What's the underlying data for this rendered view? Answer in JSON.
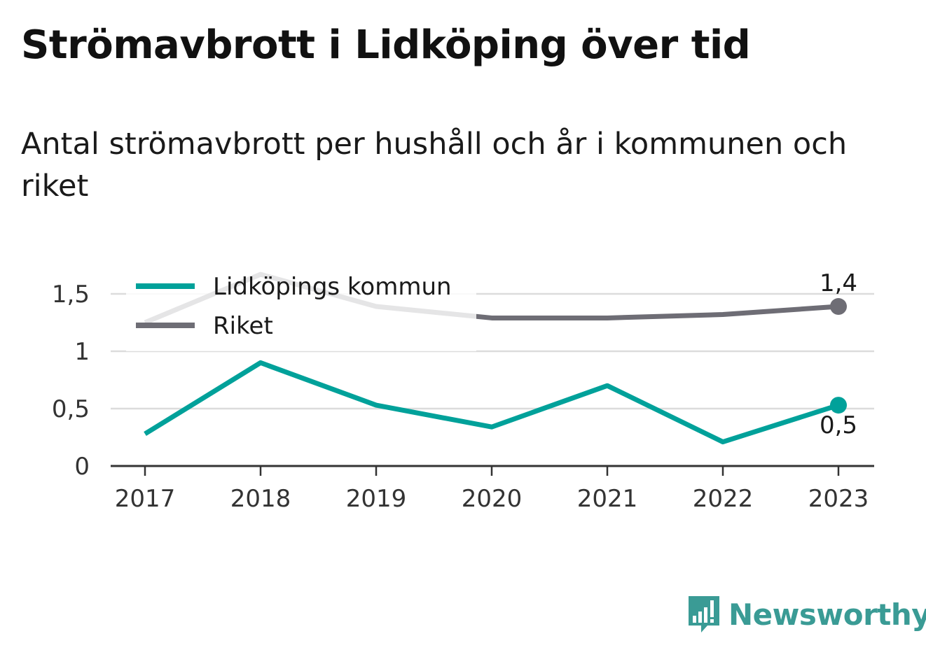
{
  "chart_data": {
    "type": "line",
    "title": "Strömavbrott i Lidköping över tid",
    "subtitle": "Antal strömavbrott per hushåll och år i kommunen och riket",
    "categories": [
      "2017",
      "2018",
      "2019",
      "2020",
      "2021",
      "2022",
      "2023"
    ],
    "series": [
      {
        "name": "Lidköpings kommun",
        "color": "#00a19a",
        "values": [
          0.28,
          0.9,
          0.53,
          0.34,
          0.7,
          0.21,
          0.53
        ],
        "end_label": "0,5"
      },
      {
        "name": "Riket",
        "color": "#6e6d75",
        "values": [
          1.25,
          1.67,
          1.39,
          1.29,
          1.29,
          1.32,
          1.39
        ],
        "end_label": "1,4"
      }
    ],
    "yticks": [
      {
        "value": 0,
        "label": "0"
      },
      {
        "value": 0.5,
        "label": "0,5"
      },
      {
        "value": 1,
        "label": "1"
      },
      {
        "value": 1.5,
        "label": "1,5"
      }
    ],
    "ylim": [
      0,
      1.75
    ],
    "grid": true,
    "legend_position": "top-left"
  },
  "brand": {
    "name": "Newsworthy",
    "color": "#3a9b95",
    "icon": "bar-chart-speech-bubble-icon"
  }
}
